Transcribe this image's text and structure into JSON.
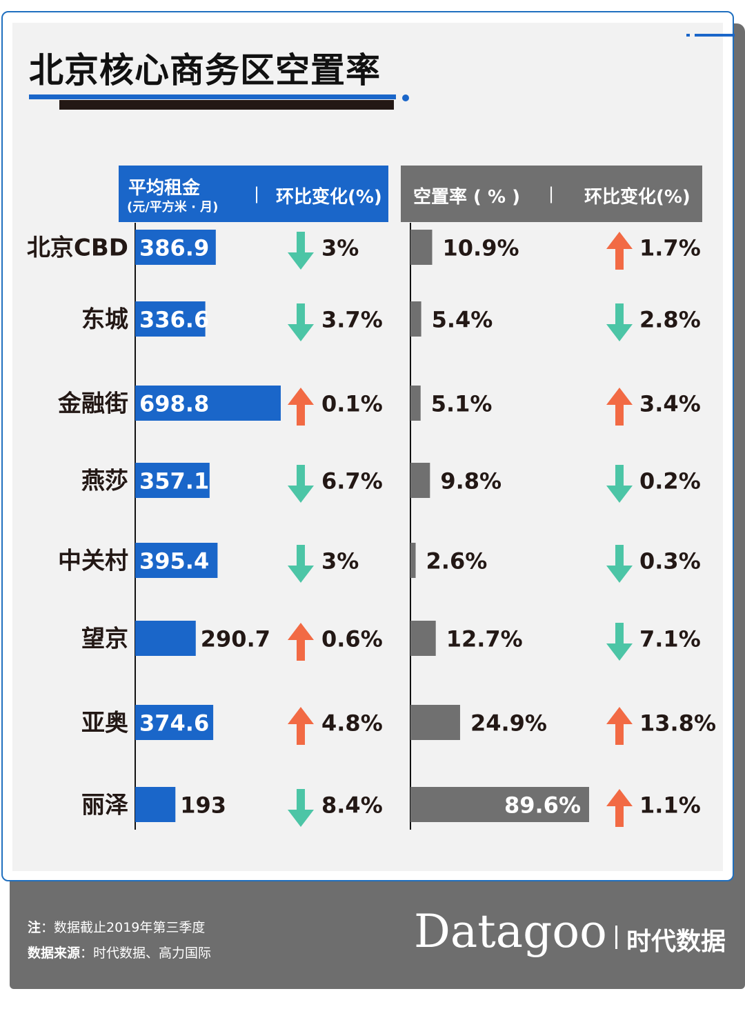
{
  "title": "北京核心商务区空置率",
  "headers": {
    "rent_title": "平均租金",
    "rent_unit": "(元/平方米 · 月)",
    "sep": "|",
    "rent_change": "环比变化(%)",
    "vacancy": "空置率 ( % )",
    "vacancy_change": "环比变化(%)"
  },
  "colors": {
    "blue": "#1a66c9",
    "gray": "#707070",
    "down_green": "#4cc5a6",
    "up_orange": "#f26a44"
  },
  "chart_data": {
    "type": "bar",
    "title": "北京核心商务区空置率",
    "categories": [
      "北京CBD",
      "东城",
      "金融街",
      "燕莎",
      "中关村",
      "望京",
      "亚奥",
      "丽泽"
    ],
    "series": [
      {
        "name": "平均租金(元/平方米·月)",
        "values": [
          386.9,
          336.6,
          698.8,
          357.1,
          395.4,
          290.7,
          374.6,
          193
        ],
        "labels": [
          "386.9",
          "336.6",
          "698.8",
          "357.1",
          "395.4",
          "290.7",
          "374.6",
          "193"
        ]
      },
      {
        "name": "租金环比变化(%)",
        "direction": [
          "down",
          "down",
          "up",
          "down",
          "down",
          "up",
          "up",
          "down"
        ],
        "labels": [
          "3%",
          "3.7%",
          "0.1%",
          "6.7%",
          "3%",
          "0.6%",
          "4.8%",
          "8.4%"
        ]
      },
      {
        "name": "空置率(%)",
        "values": [
          10.9,
          5.4,
          5.1,
          9.8,
          2.6,
          12.7,
          24.9,
          89.6
        ],
        "labels": [
          "10.9%",
          "5.4%",
          "5.1%",
          "9.8%",
          "2.6%",
          "12.7%",
          "24.9%",
          "89.6%"
        ]
      },
      {
        "name": "空置率环比变化(%)",
        "direction": [
          "up",
          "down",
          "up",
          "down",
          "down",
          "down",
          "up",
          "up"
        ],
        "labels": [
          "1.7%",
          "2.8%",
          "3.4%",
          "0.2%",
          "0.3%",
          "7.1%",
          "13.8%",
          "1.1%"
        ]
      }
    ]
  },
  "footer": {
    "note_label": "注",
    "note_text": "：数据截止2019年第三季度",
    "source_label": "数据来源",
    "source_text": "：时代数据、高力国际",
    "brand": "Datagoo",
    "brand_cn": "时代数据"
  }
}
